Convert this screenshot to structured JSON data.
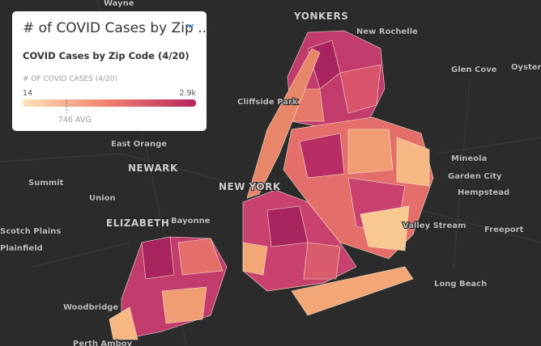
{
  "legend": {
    "title": "# of COVID Cases by Zip ...",
    "subtitle": "COVID Cases by Zip Code (4/20)",
    "label": "# OF COVID CASES (4/20)",
    "min": 14,
    "max": {
      "value": 2900,
      "label": "2.9k"
    },
    "avg": {
      "value": 746,
      "label": "746 AVG"
    }
  },
  "places": [
    "Wayne",
    "YONKERS",
    "New Rochelle",
    "Glen Cove",
    "Oyster",
    "Cliffside Park",
    "East Orange",
    "NEWARK",
    "Summit",
    "Union",
    "NEW YORK",
    "Mineola",
    "Garden City",
    "Hempstead",
    "ELIZABETH",
    "Bayonne",
    "Scotch Plains",
    "Plainfield",
    "Valley Stream",
    "Freeport",
    "Long Beach",
    "Woodbridge",
    "Perth Amboy"
  ]
}
